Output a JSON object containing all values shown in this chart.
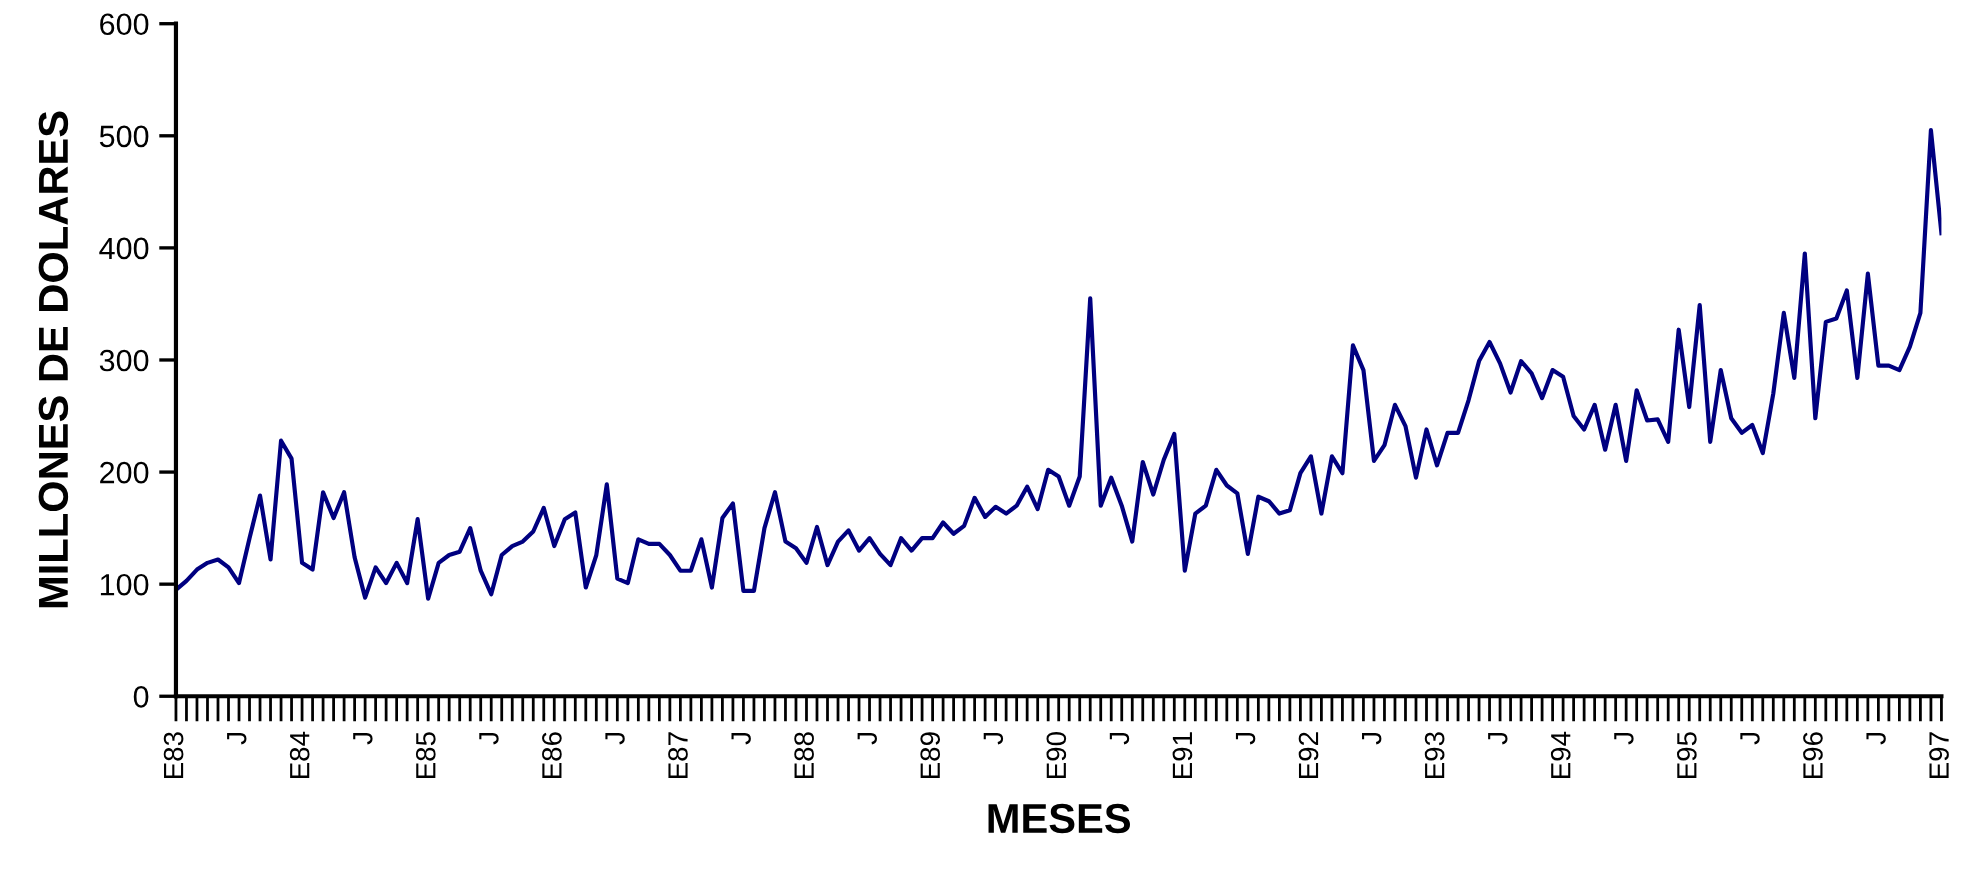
{
  "chart_data": {
    "type": "line",
    "xlabel": "MESES",
    "ylabel": "MILLONES DE DOLARES",
    "categories": [
      "E83",
      null,
      null,
      null,
      null,
      null,
      "J",
      null,
      null,
      null,
      null,
      null,
      "E84",
      null,
      null,
      null,
      null,
      null,
      "J",
      null,
      null,
      null,
      null,
      null,
      "E85",
      null,
      null,
      null,
      null,
      null,
      "J",
      null,
      null,
      null,
      null,
      null,
      "E86",
      null,
      null,
      null,
      null,
      null,
      "J",
      null,
      null,
      null,
      null,
      null,
      "E87",
      null,
      null,
      null,
      null,
      null,
      "J",
      null,
      null,
      null,
      null,
      null,
      "E88",
      null,
      null,
      null,
      null,
      null,
      "J",
      null,
      null,
      null,
      null,
      null,
      "E89",
      null,
      null,
      null,
      null,
      null,
      "J",
      null,
      null,
      null,
      null,
      null,
      "E90",
      null,
      null,
      null,
      null,
      null,
      "J",
      null,
      null,
      null,
      null,
      null,
      "E91",
      null,
      null,
      null,
      null,
      null,
      "J",
      null,
      null,
      null,
      null,
      null,
      "E92",
      null,
      null,
      null,
      null,
      null,
      "J",
      null,
      null,
      null,
      null,
      null,
      "E93",
      null,
      null,
      null,
      null,
      null,
      "J",
      null,
      null,
      null,
      null,
      null,
      "E94",
      null,
      null,
      null,
      null,
      null,
      "J",
      null,
      null,
      null,
      null,
      null,
      "E95",
      null,
      null,
      null,
      null,
      null,
      "J",
      null,
      null,
      null,
      null,
      null,
      "E96",
      null,
      null,
      null,
      null,
      null,
      "J",
      null,
      null,
      null,
      null,
      null,
      "E97"
    ],
    "series": [
      {
        "color": "#000080",
        "values": [
          95,
          103,
          113,
          119,
          122,
          115,
          101,
          141,
          179,
          122,
          228,
          212,
          119,
          113,
          182,
          159,
          182,
          124,
          88,
          115,
          101,
          119,
          101,
          158,
          87,
          119,
          126,
          129,
          150,
          112,
          91,
          126,
          134,
          138,
          147,
          168,
          134,
          158,
          164,
          97,
          126,
          189,
          105,
          101,
          140,
          136,
          136,
          126,
          112,
          112,
          140,
          97,
          159,
          172,
          94,
          94,
          150,
          182,
          138,
          132,
          119,
          151,
          117,
          138,
          148,
          130,
          141,
          127,
          117,
          141,
          130,
          141,
          141,
          155,
          145,
          152,
          177,
          160,
          169,
          163,
          170,
          187,
          167,
          202,
          196,
          170,
          196,
          355,
          170,
          195,
          170,
          138,
          209,
          180,
          211,
          234,
          112,
          163,
          170,
          202,
          188,
          181,
          127,
          178,
          174,
          163,
          166,
          199,
          214,
          163,
          214,
          199,
          313,
          291,
          210,
          224,
          260,
          241,
          195,
          238,
          206,
          235,
          235,
          264,
          299,
          316,
          297,
          271,
          299,
          288,
          266,
          291,
          285,
          250,
          238,
          260,
          220,
          260,
          210,
          273,
          246,
          247,
          227,
          327,
          258,
          349,
          227,
          291,
          248,
          235,
          242,
          217,
          270,
          342,
          284,
          395,
          248,
          334,
          337,
          362,
          284,
          377,
          295,
          295,
          291,
          312,
          342,
          505,
          413
        ]
      }
    ],
    "ylim": [
      0,
      600
    ],
    "yticks": [
      0,
      100,
      200,
      300,
      400,
      500,
      600
    ],
    "grid": false,
    "marker": "none",
    "line_style": "solid"
  }
}
